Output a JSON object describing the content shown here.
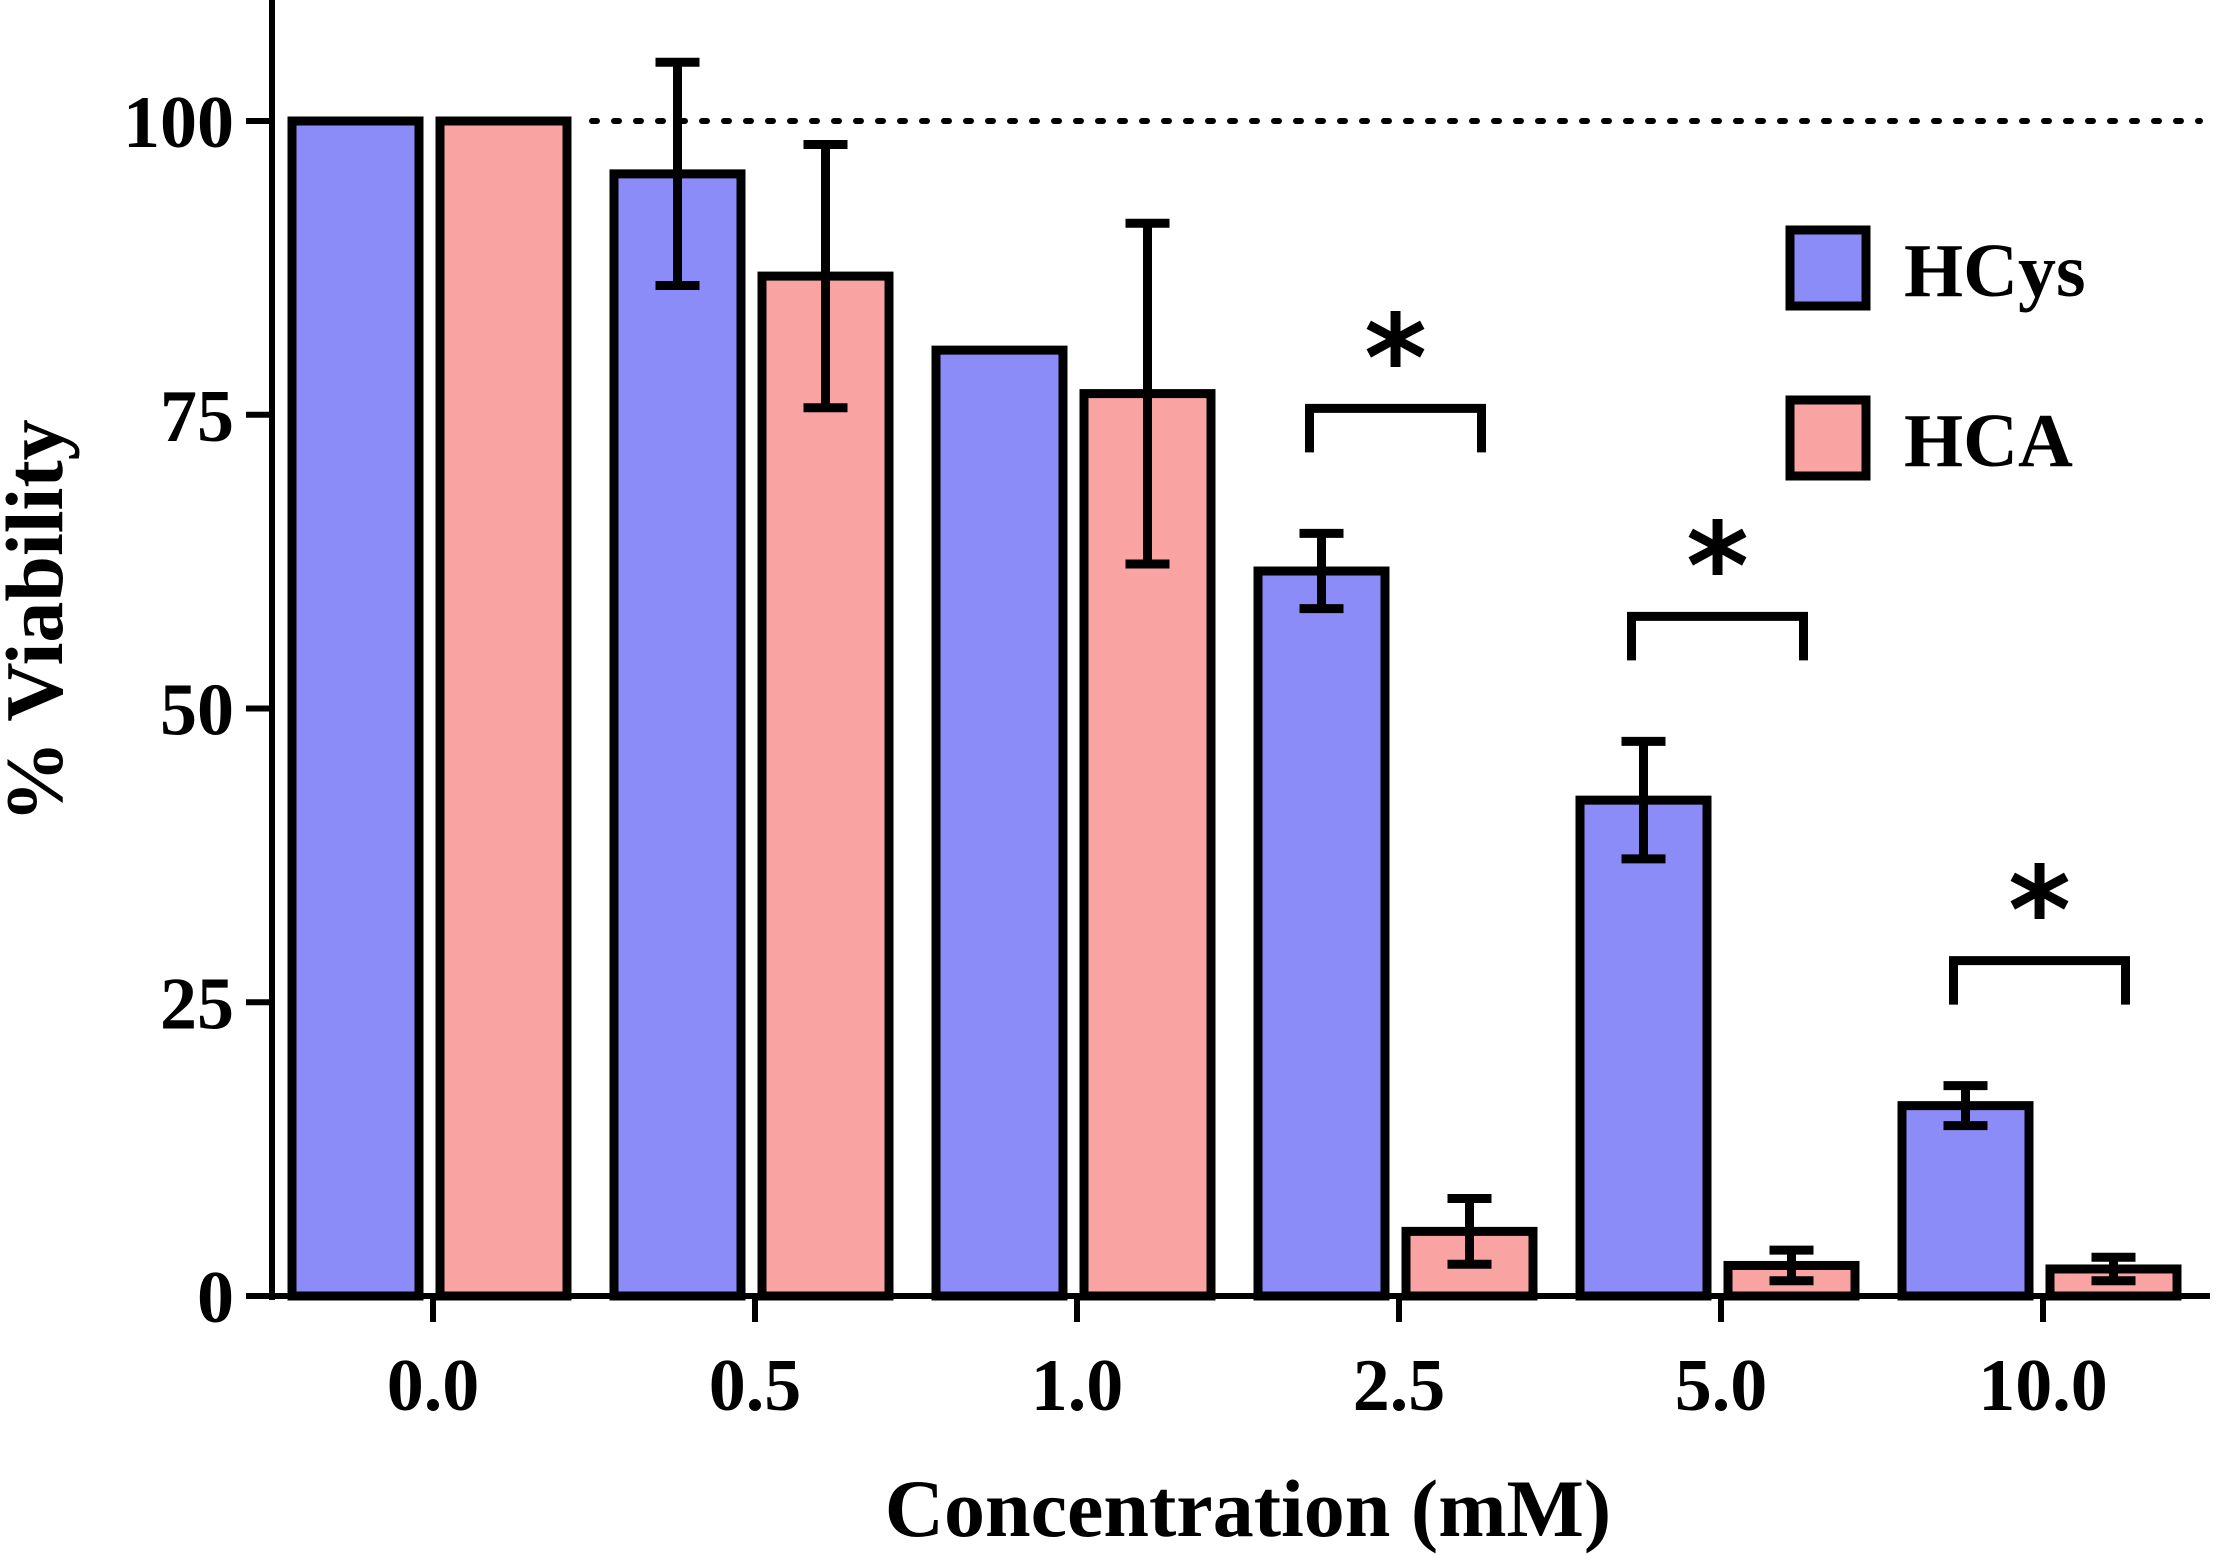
{
  "chart_data": {
    "type": "bar",
    "title": "",
    "xlabel": "Concentration (mM)",
    "ylabel": "% Viability",
    "ylim": [
      0,
      110
    ],
    "yticks": [
      "0",
      "25",
      "50",
      "75",
      "100"
    ],
    "categories": [
      "0.0",
      "0.5",
      "1.0",
      "2.5",
      "5.0",
      "10.0"
    ],
    "reference_line": 100,
    "legend_position": "top-right",
    "series": [
      {
        "name": "HCys",
        "color": "#8c8cf8",
        "values": [
          100,
          95.5,
          80.5,
          61.7,
          42.2,
          16.2
        ],
        "error": [
          0,
          9.5,
          0,
          3.2,
          5,
          1.7
        ]
      },
      {
        "name": "HCA",
        "color": "#f9a3a3",
        "values": [
          100,
          86.8,
          76.8,
          5.5,
          2.6,
          2.3
        ],
        "error": [
          0,
          11.2,
          14.5,
          2.8,
          1.3,
          1.0
        ]
      }
    ],
    "significance": [
      {
        "category": "2.5",
        "label": "*"
      },
      {
        "category": "5.0",
        "label": "*"
      },
      {
        "category": "10.0",
        "label": "*"
      }
    ]
  }
}
